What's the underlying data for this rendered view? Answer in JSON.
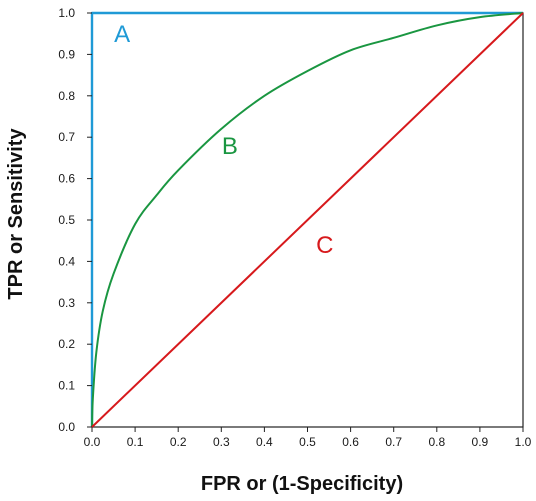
{
  "chart_data": {
    "type": "line",
    "xlabel": "FPR or (1-Specificity)",
    "ylabel": "TPR or Sensitivity",
    "xlim": [
      0.0,
      1.0
    ],
    "ylim": [
      0.0,
      1.0
    ],
    "x_ticks": [
      "0.0",
      "0.1",
      "0.2",
      "0.3",
      "0.4",
      "0.5",
      "0.6",
      "0.7",
      "0.8",
      "0.9",
      "1.0"
    ],
    "y_ticks": [
      "0.0",
      "0.1",
      "0.2",
      "0.3",
      "0.4",
      "0.5",
      "0.6",
      "0.7",
      "0.8",
      "0.9",
      "1.0"
    ],
    "grid": false,
    "series": [
      {
        "name": "A",
        "color": "#1f9ad6",
        "x": [
          0.0,
          0.0,
          1.0
        ],
        "y": [
          0.0,
          1.0,
          1.0
        ]
      },
      {
        "name": "B",
        "color": "#1a9641",
        "x": [
          0.0,
          0.002,
          0.01,
          0.025,
          0.05,
          0.1,
          0.15,
          0.2,
          0.3,
          0.4,
          0.5,
          0.6,
          0.7,
          0.8,
          0.9,
          1.0
        ],
        "y": [
          0.0,
          0.07,
          0.18,
          0.28,
          0.37,
          0.49,
          0.56,
          0.62,
          0.72,
          0.8,
          0.86,
          0.91,
          0.94,
          0.97,
          0.99,
          1.0
        ]
      },
      {
        "name": "C",
        "color": "#d7191c",
        "x": [
          0.0,
          1.0
        ],
        "y": [
          0.0,
          1.0
        ]
      }
    ],
    "annotations": [
      {
        "text": "A",
        "x": 0.07,
        "y": 0.93,
        "color": "#1f9ad6"
      },
      {
        "text": "B",
        "x": 0.32,
        "y": 0.66,
        "color": "#1a9641"
      },
      {
        "text": "C",
        "x": 0.54,
        "y": 0.42,
        "color": "#d7191c"
      }
    ]
  }
}
